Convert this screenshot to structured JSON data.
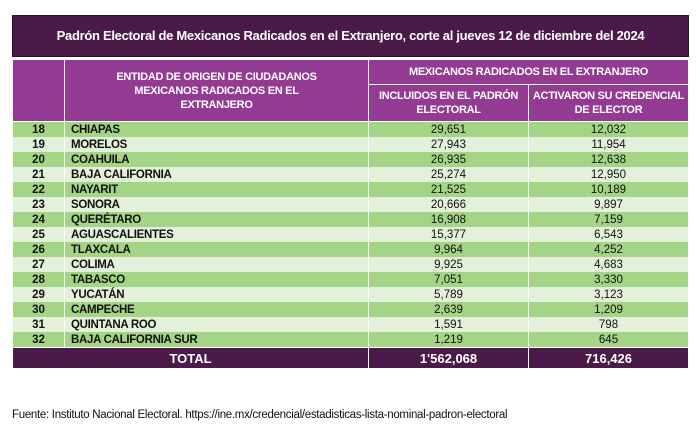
{
  "title": "Padrón Electoral de Mexicanos Radicados en el Extranjero, corte al jueves 12 de diciembre del 2024",
  "headers": {
    "entity": "ENTIDAD DE ORIGEN DE CIUDADANOS MEXICANOS RADICADOS EN EL EXTRANJERO",
    "group": "MEXICANOS RADICADOS EN EL EXTRANJERO",
    "col1": "INCLUIDOS EN EL PADRÓN ELECTORAL",
    "col2": "ACTIVARON SU  CREDENCIAL DE ELECTOR"
  },
  "rows": [
    {
      "n": "18",
      "name": "CHIAPAS",
      "padron": "29,651",
      "cred": "12,032"
    },
    {
      "n": "19",
      "name": "MORELOS",
      "padron": "27,943",
      "cred": "11,954"
    },
    {
      "n": "20",
      "name": "COAHUILA",
      "padron": "26,935",
      "cred": "12,638"
    },
    {
      "n": "21",
      "name": "BAJA CALIFORNIA",
      "padron": "25,274",
      "cred": "12,950"
    },
    {
      "n": "22",
      "name": "NAYARIT",
      "padron": "21,525",
      "cred": "10,189"
    },
    {
      "n": "23",
      "name": "SONORA",
      "padron": "20,666",
      "cred": "9,897"
    },
    {
      "n": "24",
      "name": "QUERÉTARO",
      "padron": "16,908",
      "cred": "7,159"
    },
    {
      "n": "25",
      "name": "AGUASCALIENTES",
      "padron": "15,377",
      "cred": "6,543"
    },
    {
      "n": "26",
      "name": "TLAXCALA",
      "padron": "9,964",
      "cred": "4,252"
    },
    {
      "n": "27",
      "name": "COLIMA",
      "padron": "9,925",
      "cred": "4,683"
    },
    {
      "n": "28",
      "name": "TABASCO",
      "padron": "7,051",
      "cred": "3,330"
    },
    {
      "n": "29",
      "name": "YUCATÁN",
      "padron": "5,789",
      "cred": "3,123"
    },
    {
      "n": "30",
      "name": "CAMPECHE",
      "padron": "2,639",
      "cred": "1,209"
    },
    {
      "n": "31",
      "name": "QUINTANA ROO",
      "padron": "1,591",
      "cred": "798"
    },
    {
      "n": "32",
      "name": "BAJA CALIFORNIA SUR",
      "padron": "1,219",
      "cred": "645"
    }
  ],
  "total": {
    "label": "TOTAL",
    "padron": "1'562,068",
    "cred": "716,426"
  },
  "source": "Fuente: Instituto Nacional Electoral. https://ine.mx/credencial/estadisticas-lista-nominal-padron-electoral"
}
